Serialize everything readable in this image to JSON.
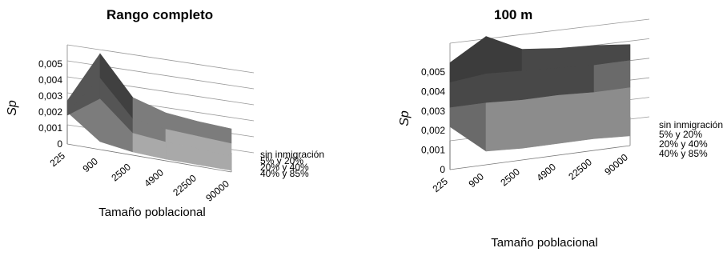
{
  "chart_data": [
    {
      "type": "surface",
      "title": "Rango completo",
      "xlabel": "Tamaño poblacional",
      "ylabel": "Sp",
      "categories": [
        "225",
        "900",
        "2500",
        "4900",
        "22500",
        "90000"
      ],
      "depth_labels": [
        "sin inmigración",
        "5% y 20%",
        "20% y 40%",
        "40% y 85%"
      ],
      "y_ticks": [
        "0",
        "0,001",
        "0,002",
        "0,003",
        "0,004",
        "0,005"
      ],
      "ylim": [
        0,
        0.005
      ],
      "grid": true,
      "series": [
        {
          "name": "sin inmigración",
          "values": [
            0.0015,
            0.0048,
            0.0024,
            0.0018,
            0.0016,
            0.0015
          ]
        },
        {
          "name": "5% y 20%",
          "values": [
            0.0012,
            0.0037,
            0.0015,
            0.0012,
            0.0011,
            0.001
          ]
        },
        {
          "name": "20% y 40%",
          "values": [
            0.0014,
            0.0028,
            0.001,
            0.0008,
            0.0007,
            0.0006
          ]
        },
        {
          "name": "40% y 85%",
          "values": [
            0.002,
            0.0005,
            0.0002,
            0.0001,
            0.0001,
            0.0001
          ]
        }
      ],
      "band_colors": [
        "#a9a9a9",
        "#7c7c7c",
        "#555555",
        "#404040",
        "#3c3c3c"
      ]
    },
    {
      "type": "surface",
      "title": "100 m",
      "xlabel": "Tamaño poblacional",
      "ylabel": "Sp",
      "categories": [
        "225",
        "900",
        "2500",
        "4900",
        "22500",
        "90000"
      ],
      "depth_labels": [
        "sin inmigración",
        "5% y 20%",
        "20% y 40%",
        "40% y 85%"
      ],
      "y_ticks": [
        "0",
        "0,001",
        "0,002",
        "0,003",
        "0,004",
        "0,005"
      ],
      "ylim": [
        0,
        0.005
      ],
      "grid": true,
      "series": [
        {
          "name": "sin inmigración",
          "values": [
            0.004,
            0.0051,
            0.0042,
            0.004,
            0.0039,
            0.0037
          ]
        },
        {
          "name": "5% y 20%",
          "values": [
            0.0035,
            0.0037,
            0.0036,
            0.0035,
            0.0034,
            0.0034
          ]
        },
        {
          "name": "20% y 40%",
          "values": [
            0.0027,
            0.0027,
            0.0026,
            0.0026,
            0.0025,
            0.0025
          ]
        },
        {
          "name": "40% y 85%",
          "values": [
            0.0022,
            0.0007,
            0.0006,
            0.0006,
            0.0006,
            0.0005
          ]
        }
      ],
      "band_colors": [
        "#a9a9a9",
        "#8c8c8c",
        "#6a6a6a",
        "#484848",
        "#3c3c3c"
      ]
    }
  ]
}
